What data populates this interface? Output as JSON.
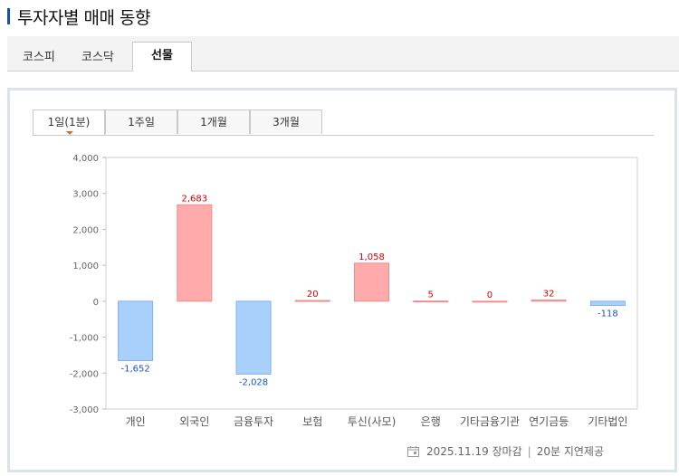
{
  "header": {
    "title": "투자자별 매매 동향"
  },
  "market_tabs": [
    {
      "label": "코스피"
    },
    {
      "label": "코스닥"
    },
    {
      "label": "선물"
    }
  ],
  "period_tabs": [
    {
      "label": "1일(1분)"
    },
    {
      "label": "1주일"
    },
    {
      "label": "1개월"
    },
    {
      "label": "3개월"
    }
  ],
  "footer": {
    "timestamp": "2025.11.19 장마감",
    "delay_note": "20분 지연제공"
  },
  "colors": {
    "positive_fill": "#ffabab",
    "positive_stroke": "#f28b8b",
    "negative_fill": "#a9d0fb",
    "negative_stroke": "#7fb2ec",
    "positive_label": "#d60000",
    "negative_label": "#1456c2"
  },
  "chart_data": {
    "type": "bar",
    "categories": [
      "개인",
      "외국인",
      "금융투자",
      "보험",
      "투신(사모)",
      "은행",
      "기타금융기관",
      "연기금등",
      "기타법인"
    ],
    "values": [
      -1652,
      2683,
      -2028,
      20,
      1058,
      5,
      0,
      32,
      -118
    ],
    "data_labels": [
      "-1,652",
      "2,683",
      "-2,028",
      "20",
      "1,058",
      "5",
      "0",
      "32",
      "-118"
    ],
    "ylim": [
      -3000,
      4000
    ],
    "yticks": [
      4000,
      3000,
      2000,
      1000,
      0,
      -1000,
      -2000,
      -3000
    ],
    "ytick_labels": [
      "4,000",
      "3,000",
      "2,000",
      "1,000",
      "0",
      "-1,000",
      "-2,000",
      "-3,000"
    ],
    "grid": false
  }
}
